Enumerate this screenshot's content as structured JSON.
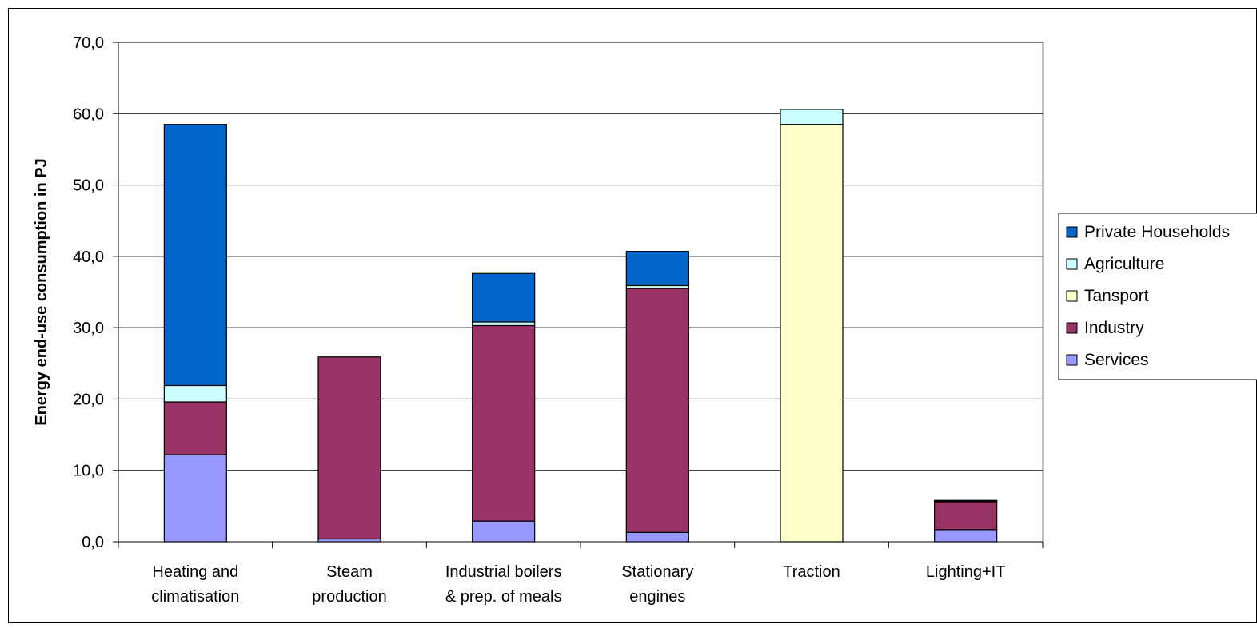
{
  "chart_data": {
    "type": "bar",
    "stacked": true,
    "title": "",
    "xlabel": "",
    "ylabel": "Energy end-use consumption in PJ",
    "ylim": [
      0,
      70
    ],
    "yticks": [
      "0,0",
      "10,0",
      "20,0",
      "30,0",
      "40,0",
      "50,0",
      "60,0",
      "70,0"
    ],
    "grid": true,
    "legend_position": "right",
    "categories": [
      [
        "Heating and",
        "climatisation"
      ],
      [
        "Steam",
        "production"
      ],
      [
        "Industrial boilers",
        "& prep. of meals"
      ],
      [
        "Stationary",
        "engines"
      ],
      [
        "Traction"
      ],
      [
        "Lighting+IT"
      ]
    ],
    "series": [
      {
        "name": "Services",
        "color": "#9999ff",
        "values": [
          12.2,
          0.4,
          2.9,
          1.3,
          0,
          1.7
        ]
      },
      {
        "name": "Industry",
        "color": "#993366",
        "values": [
          7.4,
          25.5,
          27.4,
          34.2,
          0,
          3.9
        ]
      },
      {
        "name": "Tansport",
        "color": "#ffffcc",
        "values": [
          0,
          0,
          0,
          0,
          58.5,
          0
        ]
      },
      {
        "name": "Agriculture",
        "color": "#ccffff",
        "values": [
          2.3,
          0,
          0.5,
          0.4,
          2.1,
          0.1
        ]
      },
      {
        "name": "Private Households",
        "color": "#0066cc",
        "values": [
          36.6,
          0,
          6.8,
          4.8,
          0,
          0.1
        ]
      }
    ],
    "legend_order": [
      "Private Households",
      "Agriculture",
      "Tansport",
      "Industry",
      "Services"
    ]
  }
}
